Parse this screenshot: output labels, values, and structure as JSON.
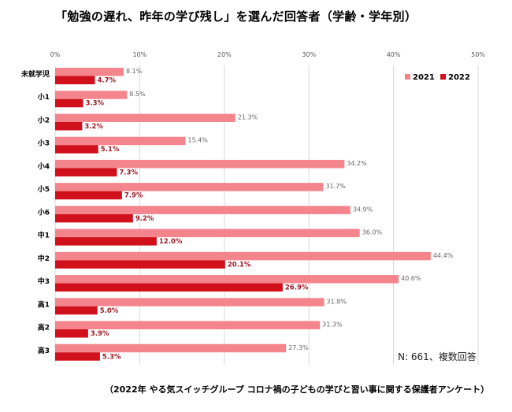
{
  "title": "「勉強の遅れ、昨年の学び残し」を選んだ回答者（学齢・学年別）",
  "note": "N: 661、複数回答",
  "source": "（2022年 やる気スイッチグループ コロナ禍の子どもの学びと習い事に関する保護者アンケート）",
  "chart_data": {
    "type": "bar",
    "orientation": "horizontal",
    "categories": [
      "未就学児",
      "小1",
      "小2",
      "小3",
      "小4",
      "小5",
      "小6",
      "中1",
      "中2",
      "中3",
      "高1",
      "高2",
      "高3"
    ],
    "series": [
      {
        "name": "2021",
        "color": "#f4858c",
        "values": [
          8.1,
          8.5,
          21.3,
          15.4,
          34.2,
          31.7,
          34.9,
          36.0,
          44.4,
          40.6,
          31.8,
          31.3,
          27.3
        ],
        "labels": [
          "8.1%",
          "8.5%",
          "21.3%",
          "15.4%",
          "34.2%",
          "31.7%",
          "34.9%",
          "36.0%",
          "44.4%",
          "40.6%",
          "31.8%",
          "31.3%",
          "27.3%"
        ]
      },
      {
        "name": "2022",
        "color": "#d0101b",
        "values": [
          4.7,
          3.3,
          3.2,
          5.1,
          7.3,
          7.9,
          9.2,
          12.0,
          20.1,
          26.9,
          5.0,
          3.9,
          5.3
        ],
        "labels": [
          "4.7%",
          "3.3%",
          "3.2%",
          "5.1%",
          "7.3%",
          "7.9%",
          "9.2%",
          "12.0%",
          "20.1%",
          "26.9%",
          "5.0%",
          "3.9%",
          "5.3%"
        ]
      }
    ],
    "xlim": [
      0,
      50
    ],
    "x_ticks": [
      "0%",
      "10%",
      "20%",
      "30%",
      "40%",
      "50%"
    ],
    "grid": true,
    "legend": "top-right"
  }
}
